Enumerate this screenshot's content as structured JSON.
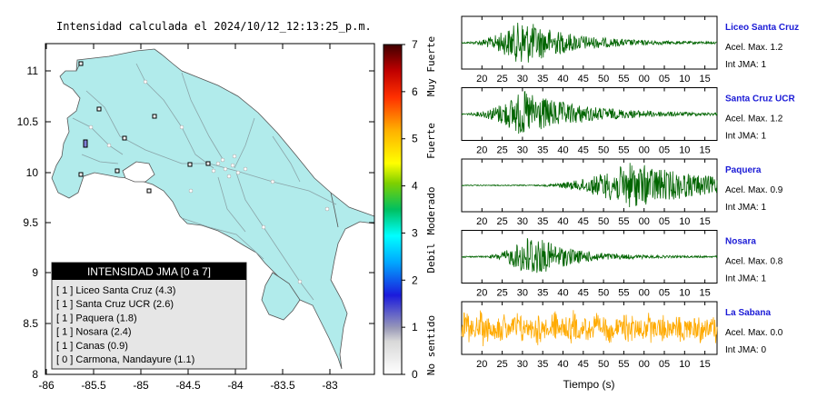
{
  "map": {
    "title": "Intensidad calculada el 2024/10/12_12:13:25_p.m.",
    "lat_ticks": [
      "11",
      "10.5",
      "10",
      "9.5",
      "9",
      "8.5",
      "8"
    ],
    "lon_ticks": [
      "-86",
      "-85.5",
      "-85",
      "-84.5",
      "-84",
      "-83.5",
      "-83"
    ],
    "land_color": "#b1ebeb",
    "sea_color": "#ffffff",
    "legend": {
      "title": "INTENSIDAD JMA [0 a 7]",
      "entries": [
        {
          "text": "[ 1 ]  Liceo Santa Cruz (4.3)"
        },
        {
          "text": "[ 1 ]  Santa Cruz UCR (2.6)"
        },
        {
          "text": "[ 1 ]  Paquera (1.8)"
        },
        {
          "text": "[ 1 ]  Nosara (2.4)"
        },
        {
          "text": "[ 1 ]  Canas (0.9)"
        },
        {
          "text": "[ 0 ]  Carmona, Nandayure (1.1)"
        }
      ]
    }
  },
  "colorbar": {
    "ticks": [
      "7",
      "6",
      "5",
      "4",
      "3",
      "2",
      "1",
      "0"
    ],
    "categories": [
      "Muy Fuerte",
      "Fuerte",
      "Moderado",
      "Debil",
      "No sentido"
    ]
  },
  "chart_data": [
    {
      "type": "line",
      "station": "Liceo Santa Cruz",
      "pga_label": "Acel. Max. 1.2",
      "jma_label": "Int JMA: 1",
      "color": "#006400",
      "onset_x": 15,
      "peak_x": 30,
      "decay": 12,
      "noise": 0.03,
      "x_ticks": [
        "20",
        "25",
        "30",
        "35",
        "40",
        "45",
        "50",
        "55",
        "00",
        "05",
        "10",
        "15"
      ]
    },
    {
      "type": "line",
      "station": "Santa Cruz UCR",
      "pga_label": "Acel. Max. 1.2",
      "jma_label": "Int JMA: 1",
      "color": "#006400",
      "onset_x": 15,
      "peak_x": 30,
      "decay": 14,
      "noise": 0.03,
      "x_ticks": [
        "20",
        "25",
        "30",
        "35",
        "40",
        "45",
        "50",
        "55",
        "00",
        "05",
        "10",
        "15"
      ]
    },
    {
      "type": "line",
      "station": "Paquera",
      "pga_label": "Acel. Max. 0.9",
      "jma_label": "Int JMA: 1",
      "color": "#006400",
      "onset_x": 32,
      "peak_x": 57,
      "decay": 20,
      "noise": 0.02,
      "x_ticks": [
        "20",
        "25",
        "30",
        "35",
        "40",
        "45",
        "50",
        "55",
        "00",
        "05",
        "10",
        "15"
      ]
    },
    {
      "type": "line",
      "station": "Nosara",
      "pga_label": "Acel. Max. 0.8",
      "jma_label": "Int JMA: 1",
      "color": "#006400",
      "onset_x": 20,
      "peak_x": 32,
      "decay": 9,
      "noise": 0.03,
      "x_ticks": [
        "20",
        "25",
        "30",
        "35",
        "40",
        "45",
        "50",
        "55",
        "00",
        "05",
        "10",
        "15"
      ]
    },
    {
      "type": "line",
      "station": "La Sabana",
      "pga_label": "Acel. Max. 0.0",
      "jma_label": "Int JMA: 0",
      "color": "#ffaa00",
      "onset_x": 15,
      "peak_x": 60,
      "decay": 60,
      "noise": 0.35,
      "x_ticks": [
        "20",
        "25",
        "30",
        "35",
        "40",
        "45",
        "50",
        "55",
        "00",
        "05",
        "10",
        "15"
      ]
    }
  ],
  "waveforms_xlabel": "Tiempo (s)"
}
